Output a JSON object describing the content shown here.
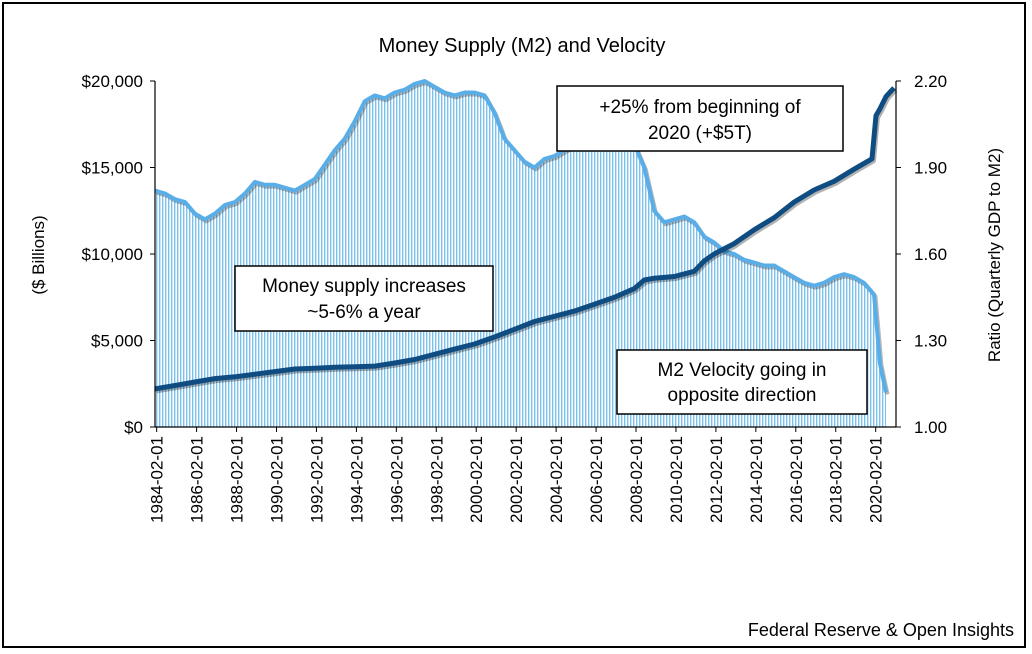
{
  "chart_data": {
    "type": "area+line",
    "title": "Money Supply (M2) and Velocity",
    "ylabel_left": "($ Billions)",
    "ylabel_right": "Ratio (Quarterly GDP to M2)",
    "ylim_left": [
      0,
      20000
    ],
    "ylim_right": [
      1.0,
      2.2
    ],
    "yticks_left": [
      "$0",
      "$5,000",
      "$10,000",
      "$15,000",
      "$20,000"
    ],
    "yticks_right": [
      "1.00",
      "1.30",
      "1.60",
      "1.90",
      "2.20"
    ],
    "xticks": [
      "1984-02-01",
      "1986-02-01",
      "1988-02-01",
      "1990-02-01",
      "1992-02-01",
      "1994-02-01",
      "1996-02-01",
      "1998-02-01",
      "2000-02-01",
      "2002-02-01",
      "2004-02-01",
      "2006-02-01",
      "2008-02-01",
      "2010-02-01",
      "2012-02-01",
      "2014-02-01",
      "2016-02-01",
      "2018-02-01",
      "2020-02-01"
    ],
    "colors": {
      "m2": "#0f4c81",
      "velocity_line": "#5aaee8",
      "velocity_fill": "#9fd0f0"
    },
    "series": [
      {
        "name": "M2",
        "axis": "left",
        "x": [
          1984.0,
          1985.0,
          1986.0,
          1987.0,
          1988.0,
          1989.0,
          1990.0,
          1991.0,
          1992.0,
          1993.0,
          1994.0,
          1995.0,
          1996.0,
          1997.0,
          1998.0,
          1999.0,
          2000.0,
          2001.0,
          2002.0,
          2003.0,
          2004.0,
          2005.0,
          2006.0,
          2007.0,
          2008.0,
          2008.5,
          2009.0,
          2010.0,
          2011.0,
          2011.5,
          2012.0,
          2013.0,
          2014.0,
          2015.0,
          2016.0,
          2017.0,
          2018.0,
          2019.0,
          2019.9,
          2020.1,
          2020.3,
          2020.6,
          2021.0
        ],
        "values": [
          2200,
          2400,
          2600,
          2800,
          2900,
          3050,
          3200,
          3350,
          3400,
          3450,
          3480,
          3520,
          3700,
          3900,
          4200,
          4500,
          4800,
          5200,
          5650,
          6100,
          6400,
          6700,
          7100,
          7500,
          8000,
          8500,
          8600,
          8700,
          9000,
          9600,
          10000,
          10600,
          11400,
          12100,
          13000,
          13700,
          14200,
          14900,
          15500,
          18000,
          18400,
          19100,
          19600
        ]
      },
      {
        "name": "M2 Velocity",
        "axis": "right",
        "x": [
          1984.0,
          1984.5,
          1985.0,
          1985.5,
          1986.0,
          1986.5,
          1987.0,
          1987.5,
          1988.0,
          1988.5,
          1989.0,
          1989.5,
          1990.0,
          1990.5,
          1991.0,
          1991.5,
          1992.0,
          1992.5,
          1993.0,
          1993.5,
          1994.0,
          1994.5,
          1995.0,
          1995.5,
          1996.0,
          1996.5,
          1997.0,
          1997.5,
          1998.0,
          1998.5,
          1999.0,
          1999.5,
          2000.0,
          2000.5,
          2001.0,
          2001.5,
          2002.0,
          2002.5,
          2003.0,
          2003.5,
          2004.0,
          2004.5,
          2005.0,
          2005.5,
          2006.0,
          2006.5,
          2007.0,
          2007.5,
          2008.0,
          2008.5,
          2009.0,
          2009.5,
          2010.0,
          2010.5,
          2011.0,
          2011.5,
          2012.0,
          2012.5,
          2013.0,
          2013.5,
          2014.0,
          2014.5,
          2015.0,
          2015.5,
          2016.0,
          2016.5,
          2017.0,
          2017.5,
          2018.0,
          2018.5,
          2019.0,
          2019.5,
          2020.0,
          2020.3,
          2020.6
        ],
        "values": [
          1.82,
          1.81,
          1.79,
          1.78,
          1.74,
          1.72,
          1.74,
          1.77,
          1.78,
          1.81,
          1.85,
          1.84,
          1.84,
          1.83,
          1.82,
          1.84,
          1.86,
          1.91,
          1.96,
          2.0,
          2.06,
          2.13,
          2.15,
          2.14,
          2.16,
          2.17,
          2.19,
          2.2,
          2.18,
          2.16,
          2.15,
          2.16,
          2.16,
          2.15,
          2.09,
          2.0,
          1.96,
          1.92,
          1.9,
          1.93,
          1.94,
          1.96,
          1.98,
          2.0,
          2.02,
          2.03,
          2.04,
          2.03,
          1.98,
          1.9,
          1.75,
          1.71,
          1.72,
          1.73,
          1.71,
          1.66,
          1.64,
          1.61,
          1.6,
          1.58,
          1.57,
          1.56,
          1.56,
          1.54,
          1.52,
          1.5,
          1.49,
          1.5,
          1.52,
          1.53,
          1.52,
          1.5,
          1.46,
          1.22,
          1.12
        ]
      }
    ],
    "annotations": [
      {
        "lines": [
          "+25% from beginning of",
          "2020 (+$5T)"
        ]
      },
      {
        "lines": [
          "Money supply increases",
          "~5-6% a year"
        ]
      },
      {
        "lines": [
          "M2 Velocity going in",
          "opposite direction"
        ]
      }
    ],
    "source": "Federal Reserve & Open Insights"
  }
}
